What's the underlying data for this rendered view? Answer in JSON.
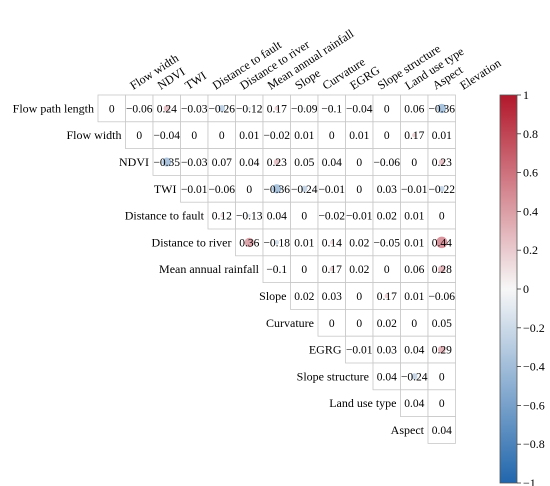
{
  "chart_data": {
    "type": "heatmap",
    "subtype": "upper-triangular correlation matrix",
    "title": "",
    "variables": [
      "Flow path length",
      "Flow width",
      "NDVI",
      "TWI",
      "Distance to fault",
      "Distance to river",
      "Mean annual rainfall",
      "Slope",
      "Curvature",
      "EGRG",
      "Slope structure",
      "Land use type",
      "Aspect",
      "Elevation"
    ],
    "column_labels": [
      "Flow width",
      "NDVI",
      "TWI",
      "Distance to fault",
      "Distance to river",
      "Mean annual rainfall",
      "Slope",
      "Curvature",
      "EGRG",
      "Slope structure",
      "Land use type",
      "Aspect",
      "Elevation"
    ],
    "row_labels": [
      "Flow path length",
      "Flow width",
      "NDVI",
      "TWI",
      "Distance to fault",
      "Distance to river",
      "Mean annual rainfall",
      "Slope",
      "Curvature",
      "EGRG",
      "Slope structure",
      "Land use type",
      "Aspect"
    ],
    "rows": [
      {
        "label": "Flow path length",
        "labels": [
          "0",
          "−0.06",
          "0.24",
          "−0.03",
          "−0.26",
          "−0.12",
          "0.17",
          "−0.09",
          "−0.1",
          "−0.04",
          "0",
          "0.06",
          "−0.36"
        ],
        "values": [
          0,
          -0.06,
          0.24,
          -0.03,
          -0.26,
          -0.12,
          0.17,
          -0.09,
          -0.1,
          -0.04,
          0,
          0.06,
          -0.36
        ]
      },
      {
        "label": "Flow width",
        "labels": [
          "0",
          "−0.04",
          "0",
          "0",
          "0.01",
          "−0.02",
          "0.01",
          "0",
          "0.01",
          "0",
          "0.17",
          "0.01"
        ],
        "values": [
          0,
          -0.04,
          0,
          0,
          0.01,
          -0.02,
          0.01,
          0,
          0.01,
          0,
          0.17,
          0.01
        ]
      },
      {
        "label": "NDVI",
        "labels": [
          "−0.35",
          "−0.03",
          "0.07",
          "0.04",
          "0.23",
          "0.05",
          "0.04",
          "0",
          "−0.06",
          "0",
          "0.23"
        ],
        "values": [
          -0.35,
          -0.03,
          0.07,
          0.04,
          0.23,
          0.05,
          0.04,
          0,
          -0.06,
          0,
          0.23
        ]
      },
      {
        "label": "TWI",
        "labels": [
          "−0.01",
          "−0.06",
          "0",
          "−0.36",
          "−0.24",
          "−0.01",
          "0",
          "0.03",
          "−0.01",
          "−0.22"
        ],
        "values": [
          -0.01,
          -0.06,
          0,
          -0.36,
          -0.24,
          -0.01,
          0,
          0.03,
          -0.01,
          -0.22
        ]
      },
      {
        "label": "Distance to fault",
        "labels": [
          "0.12",
          "−0.13",
          "0.04",
          "0",
          "−0.02",
          "−0.01",
          "0.02",
          "0.01",
          "0"
        ],
        "values": [
          0.12,
          -0.13,
          0.04,
          0,
          -0.02,
          -0.01,
          0.02,
          0.01,
          0
        ]
      },
      {
        "label": "Distance to river",
        "labels": [
          "0.36",
          "−0.18",
          "0.01",
          "0.14",
          "0.02",
          "−0.05",
          "0.01",
          "0.44"
        ],
        "values": [
          0.36,
          -0.18,
          0.01,
          0.14,
          0.02,
          -0.05,
          0.01,
          0.44
        ]
      },
      {
        "label": "Mean annual rainfall",
        "labels": [
          "−0.1",
          "0",
          "0.17",
          "0.02",
          "0",
          "0.06",
          "0.28"
        ],
        "values": [
          -0.1,
          0,
          0.17,
          0.02,
          0,
          0.06,
          0.28
        ]
      },
      {
        "label": "Slope",
        "labels": [
          "0.02",
          "0.03",
          "0",
          "0.17",
          "0.01",
          "−0.06"
        ],
        "values": [
          0.02,
          0.03,
          0,
          0.17,
          0.01,
          -0.06
        ]
      },
      {
        "label": "Curvature",
        "labels": [
          "0",
          "0",
          "0.02",
          "0",
          "0.05"
        ],
        "values": [
          0,
          0,
          0.02,
          0,
          0.05
        ]
      },
      {
        "label": "EGRG",
        "labels": [
          "−0.01",
          "0.03",
          "0.04",
          "0.29"
        ],
        "values": [
          -0.01,
          0.03,
          0.04,
          0.29
        ]
      },
      {
        "label": "Slope structure",
        "labels": [
          "0.04",
          "−0.24",
          "0"
        ],
        "values": [
          0.04,
          -0.24,
          0
        ]
      },
      {
        "label": "Land use type",
        "labels": [
          "0.04",
          "0"
        ],
        "values": [
          0.04,
          0
        ]
      },
      {
        "label": "Aspect",
        "labels": [
          "0.04"
        ],
        "values": [
          0.04
        ]
      }
    ],
    "colorbar": {
      "range": [
        -1,
        1
      ],
      "ticks": [
        1,
        0.8,
        0.6,
        0.4,
        0.2,
        0,
        -0.2,
        -0.4,
        -0.6,
        -0.8,
        -1
      ],
      "tick_labels": [
        "1",
        "0.8",
        "0.6",
        "0.4",
        "0.2",
        "0",
        "−0.2",
        "−0.4",
        "−0.6",
        "−0.8",
        "−1"
      ],
      "colors": {
        "positive": "#b2182b",
        "neutral": "#f7f7f7",
        "negative": "#2166ac"
      },
      "placement": "right"
    },
    "cell_border_color": "#c8c8c8",
    "marker": "circle sized by |r|"
  }
}
